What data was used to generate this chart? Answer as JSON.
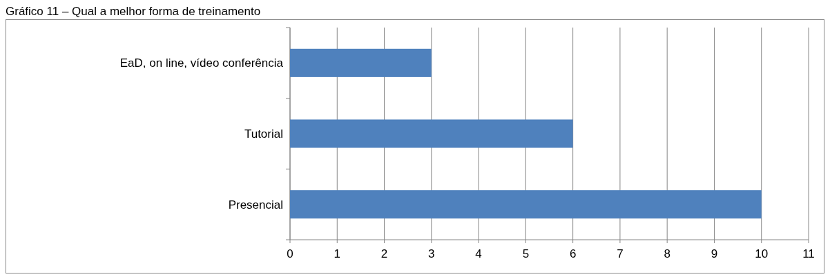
{
  "chart_data": {
    "type": "bar",
    "orientation": "horizontal",
    "title": "Gráfico 11 – Qual a melhor forma de treinamento",
    "categories": [
      "EaD, on line, vídeo conferência",
      "Tutorial",
      "Presencial"
    ],
    "values": [
      3,
      6,
      10
    ],
    "color": "#4f81bd",
    "xlim": [
      0,
      11
    ],
    "xticks": [
      0,
      1,
      2,
      3,
      4,
      5,
      6,
      7,
      8,
      9,
      10,
      11
    ],
    "grid": "x"
  }
}
